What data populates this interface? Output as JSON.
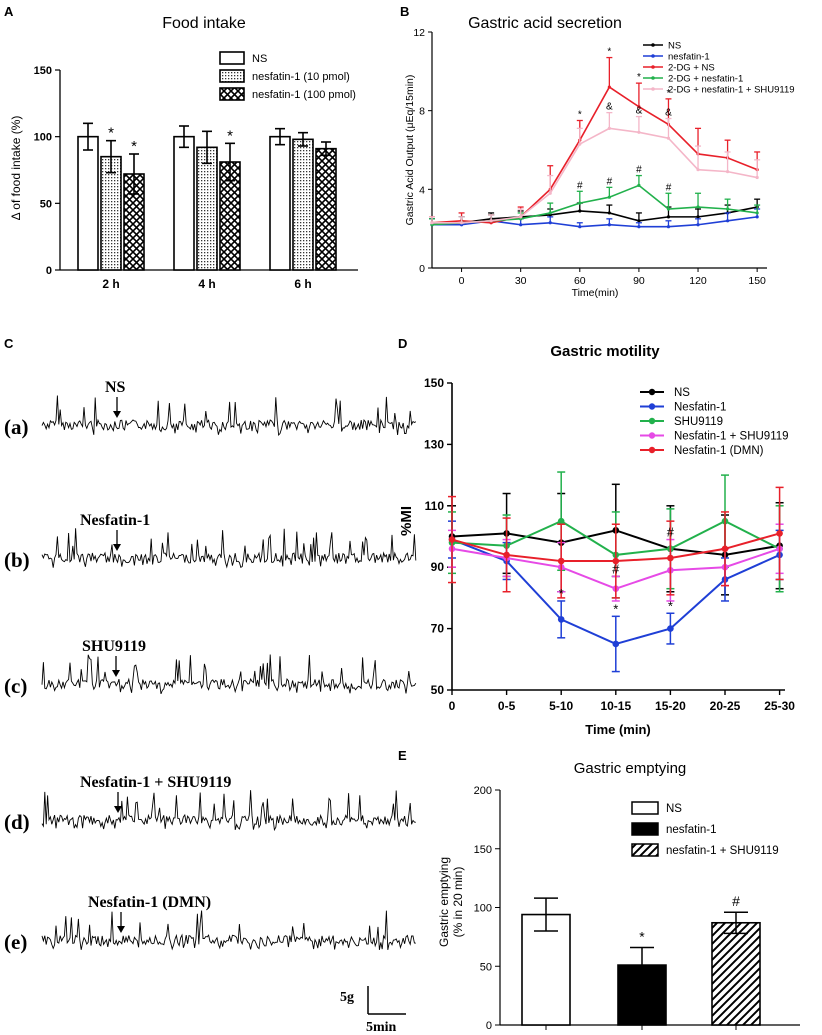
{
  "panel_labels": {
    "a": "A",
    "b": "B",
    "c": "C",
    "d": "D",
    "e": "E"
  },
  "chart_data": [
    {
      "id": "A",
      "type": "bar",
      "title": "Food intake",
      "xlabel": "",
      "ylabel": "Δ of food intake (%)",
      "ylim": [
        0,
        150
      ],
      "yticks": [
        0,
        50,
        100,
        150
      ],
      "categories": [
        "2 h",
        "4 h",
        "6 h"
      ],
      "series": [
        {
          "name": "NS",
          "values": [
            100,
            100,
            100
          ],
          "errors": [
            10,
            8,
            6
          ],
          "pattern": "white"
        },
        {
          "name": "nesfatin-1 (10 pmol)",
          "values": [
            85,
            92,
            98
          ],
          "errors": [
            12,
            12,
            5
          ],
          "pattern": "dots"
        },
        {
          "name": "nesfatin-1 (100 pmol)",
          "values": [
            72,
            81,
            91
          ],
          "errors": [
            15,
            14,
            5
          ],
          "pattern": "cross"
        }
      ],
      "annotations": [
        {
          "category": "2 h",
          "series": 1,
          "text": "*"
        },
        {
          "category": "2 h",
          "series": 2,
          "text": "*"
        },
        {
          "category": "4 h",
          "series": 2,
          "text": "*"
        }
      ]
    },
    {
      "id": "B",
      "type": "line",
      "title": "Gastric acid secretion",
      "xlabel": "Time(min)",
      "ylabel": "Gastric Acid Output (μEq/15min)",
      "xlim": [
        -15,
        155
      ],
      "ylim": [
        0,
        12
      ],
      "xticks": [
        0,
        30,
        60,
        90,
        120,
        150
      ],
      "yticks": [
        0,
        4,
        8,
        12
      ],
      "x": [
        -15,
        0,
        15,
        30,
        45,
        60,
        75,
        90,
        105,
        120,
        135,
        150
      ],
      "series": [
        {
          "name": "NS",
          "color": "#000000",
          "values": [
            2.2,
            2.3,
            2.5,
            2.6,
            2.7,
            2.9,
            2.8,
            2.4,
            2.6,
            2.6,
            2.8,
            3.1
          ],
          "errors": [
            0.3,
            0.3,
            0.3,
            0.3,
            0.3,
            0.4,
            0.4,
            0.4,
            0.5,
            0.4,
            0.4,
            0.4
          ]
        },
        {
          "name": "nesfatin-1",
          "color": "#1f3fd6",
          "values": [
            2.2,
            2.2,
            2.4,
            2.2,
            2.3,
            2.1,
            2.2,
            2.1,
            2.1,
            2.2,
            2.4,
            2.6
          ],
          "errors": [
            0.3,
            0.4,
            0.3,
            0.3,
            0.3,
            0.2,
            0.3,
            0.2,
            0.3,
            0.3,
            0.4,
            0.4
          ]
        },
        {
          "name": "2-DG + NS",
          "color": "#e8202a",
          "values": [
            2.3,
            2.4,
            2.3,
            2.6,
            4.0,
            6.5,
            9.2,
            8.2,
            7.3,
            5.8,
            5.6,
            5.0
          ],
          "errors": [
            0.3,
            0.4,
            0.4,
            0.5,
            1.2,
            1.0,
            1.5,
            1.2,
            1.3,
            1.3,
            0.9,
            0.9
          ]
        },
        {
          "name": "2-DG + nesfatin-1",
          "color": "#22b14c",
          "values": [
            2.2,
            2.3,
            2.4,
            2.5,
            2.8,
            3.3,
            3.6,
            4.2,
            3.0,
            3.1,
            3.0,
            2.8
          ],
          "errors": [
            0.3,
            0.3,
            0.3,
            0.3,
            0.5,
            0.6,
            0.5,
            0.5,
            0.8,
            0.7,
            0.5,
            0.4
          ]
        },
        {
          "name": "2-DG + nesfatin-1 + SHU9119",
          "color": "#f4b6c8",
          "values": [
            2.3,
            2.3,
            2.4,
            2.6,
            3.8,
            6.3,
            7.1,
            6.9,
            6.6,
            5.0,
            4.9,
            4.6
          ],
          "errors": [
            0.3,
            0.3,
            0.3,
            0.4,
            0.9,
            0.8,
            0.8,
            0.8,
            1.0,
            1.2,
            1.0,
            0.9
          ]
        }
      ],
      "annotations": [
        {
          "x": 60,
          "series": 2,
          "text": "*"
        },
        {
          "x": 75,
          "series": 2,
          "text": "*"
        },
        {
          "x": 90,
          "series": 2,
          "text": "*"
        },
        {
          "x": 105,
          "series": 2,
          "text": "*"
        },
        {
          "x": 75,
          "series": 4,
          "text": "&"
        },
        {
          "x": 90,
          "series": 4,
          "text": "&"
        },
        {
          "x": 105,
          "series": 4,
          "text": "&"
        },
        {
          "x": 60,
          "series": 3,
          "text": "#"
        },
        {
          "x": 75,
          "series": 3,
          "text": "#"
        },
        {
          "x": 90,
          "series": 3,
          "text": "#"
        },
        {
          "x": 105,
          "series": 3,
          "text": "#"
        }
      ]
    },
    {
      "id": "D",
      "type": "line",
      "title": "Gastric motility",
      "xlabel": "Time (min)",
      "ylabel": "%MI",
      "ylim": [
        50,
        150
      ],
      "yticks": [
        50,
        70,
        90,
        110,
        130,
        150
      ],
      "categories": [
        "0",
        "0-5",
        "5-10",
        "10-15",
        "15-20",
        "20-25",
        "25-30"
      ],
      "series": [
        {
          "name": "NS",
          "color": "#000000",
          "values": [
            100,
            101,
            98,
            102,
            96,
            94,
            97
          ],
          "errors": [
            10,
            13,
            16,
            15,
            14,
            13,
            14
          ]
        },
        {
          "name": "Nesfatin-1",
          "color": "#1f3fd6",
          "values": [
            99,
            92,
            73,
            65,
            70,
            86,
            94
          ],
          "errors": [
            6,
            6,
            6,
            9,
            5,
            7,
            8
          ]
        },
        {
          "name": "SHU9119",
          "color": "#22b14c",
          "values": [
            98,
            97,
            105,
            94,
            96,
            105,
            96
          ],
          "errors": [
            10,
            10,
            16,
            14,
            13,
            15,
            14
          ]
        },
        {
          "name": "Nesfatin-1 + SHU9119",
          "color": "#e64ae6",
          "values": [
            96,
            93,
            90,
            83,
            89,
            90,
            96
          ],
          "errors": [
            6,
            6,
            8,
            4,
            10,
            6,
            8
          ]
        },
        {
          "name": "Nesfatin-1 (DMN)",
          "color": "#e8202a",
          "values": [
            99,
            94,
            92,
            92,
            93,
            96,
            101
          ],
          "errors": [
            14,
            12,
            12,
            12,
            12,
            12,
            15
          ]
        }
      ],
      "annotations": [
        {
          "category": "5-10",
          "series": 1,
          "text": "*"
        },
        {
          "category": "10-15",
          "series": 1,
          "text": "*"
        },
        {
          "category": "15-20",
          "series": 1,
          "text": "*"
        },
        {
          "category": "10-15",
          "series": 3,
          "text": "#"
        },
        {
          "category": "15-20",
          "series": 3,
          "text": "#"
        }
      ]
    },
    {
      "id": "E",
      "type": "bar",
      "title": "Gastric emptying",
      "xlabel": "",
      "ylabel": "Gastric emptying\n(% in 20 min)",
      "ylim": [
        0,
        200
      ],
      "yticks": [
        0,
        50,
        100,
        150,
        200
      ],
      "categories": [
        "NS",
        "nesfatin-1",
        "nesfatin-1 + SHU9119"
      ],
      "values": [
        94,
        51,
        87
      ],
      "errors": [
        14,
        15,
        9
      ],
      "patterns": [
        "white",
        "black",
        "hatch"
      ],
      "annotations": [
        {
          "category": "nesfatin-1",
          "text": "*"
        },
        {
          "category": "nesfatin-1 + SHU9119",
          "text": "#"
        }
      ]
    }
  ],
  "panel_c": {
    "traces": [
      {
        "label": "(a)",
        "drug": "NS"
      },
      {
        "label": "(b)",
        "drug": "Nesfatin-1"
      },
      {
        "label": "(c)",
        "drug": "SHU9119"
      },
      {
        "label": "(d)",
        "drug": "Nesfatin-1 + SHU9119"
      },
      {
        "label": "(e)",
        "drug": "Nesfatin-1 (DMN)"
      }
    ],
    "scale_y": "5g",
    "scale_x": "5min"
  }
}
